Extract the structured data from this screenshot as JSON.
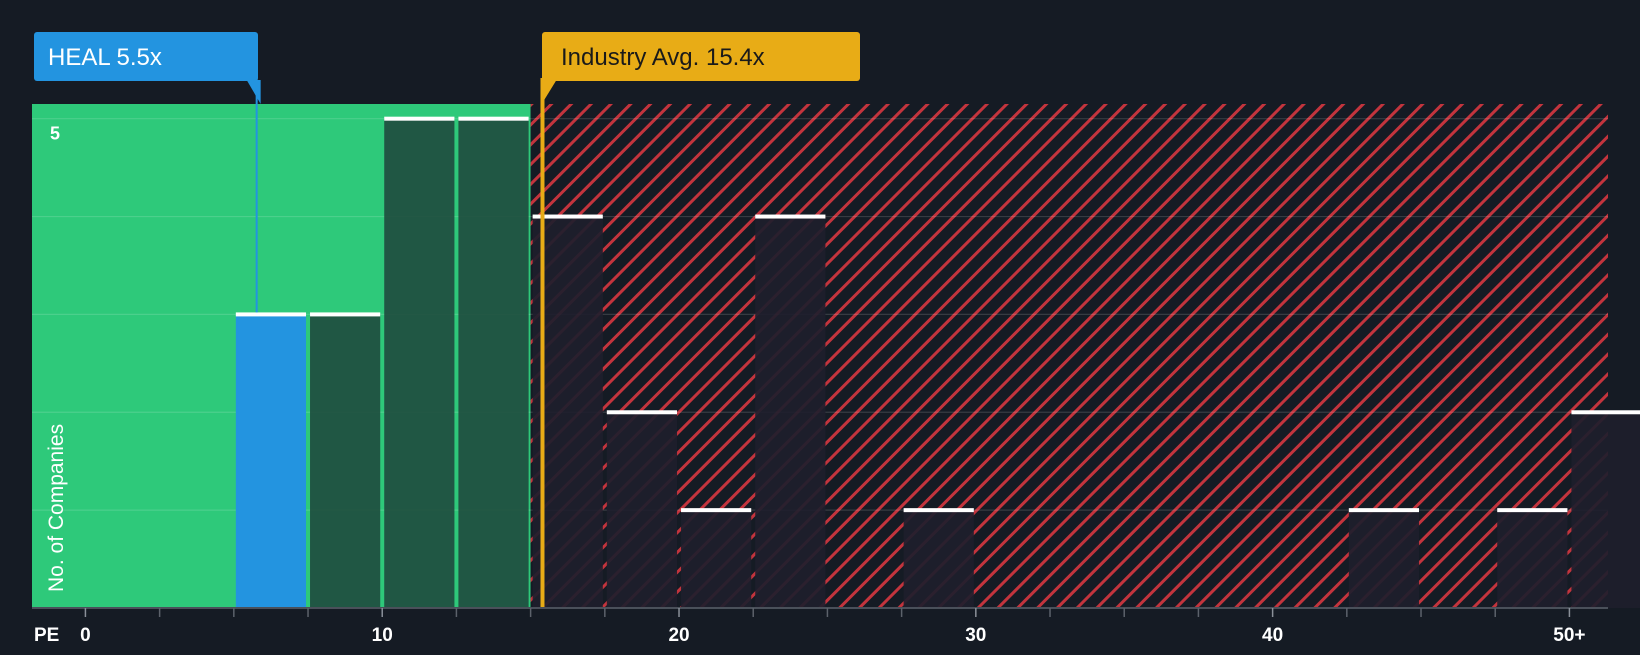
{
  "chart_data": {
    "type": "bar",
    "xlabel": "PE",
    "ylabel": "No. of Companies",
    "x_tick_labels": [
      {
        "value": 0,
        "label": "0"
      },
      {
        "value": 10,
        "label": "10"
      },
      {
        "value": 20,
        "label": "20"
      },
      {
        "value": 30,
        "label": "30"
      },
      {
        "value": 40,
        "label": "40"
      },
      {
        "value": 50,
        "label": "50+"
      }
    ],
    "y_tick_labels": [
      {
        "value": 5,
        "label": "5"
      }
    ],
    "xlim": [
      -1.8,
      51.3
    ],
    "ylim": [
      0,
      5.15
    ],
    "bin_width": 2.5,
    "bins": [
      {
        "start": 5.0,
        "end": 7.5,
        "count": 3
      },
      {
        "start": 7.5,
        "end": 10.0,
        "count": 3
      },
      {
        "start": 10.0,
        "end": 12.5,
        "count": 5
      },
      {
        "start": 12.5,
        "end": 15.0,
        "count": 5
      },
      {
        "start": 15.0,
        "end": 17.5,
        "count": 4
      },
      {
        "start": 17.5,
        "end": 20.0,
        "count": 2
      },
      {
        "start": 20.0,
        "end": 22.5,
        "count": 1
      },
      {
        "start": 22.5,
        "end": 25.0,
        "count": 4
      },
      {
        "start": 27.5,
        "end": 30.0,
        "count": 1
      },
      {
        "start": 42.5,
        "end": 45.0,
        "count": 1
      },
      {
        "start": 47.5,
        "end": 50.0,
        "count": 1
      },
      {
        "start": 50.0,
        "end": 52.5,
        "count": 2
      }
    ],
    "company": {
      "label": "HEAL 5.5x",
      "value": 5.5,
      "color": "#2394e0"
    },
    "industry_avg": {
      "label": "Industry Avg. 15.4x",
      "value": 15.4,
      "color": "#e8ac16"
    },
    "colors": {
      "background": "#151b24",
      "undervalued_zone": "#2ec97a",
      "overvalued_zone": "#c3343d",
      "bar_in_green": "#1f4d3f",
      "bar_in_red": "#1e1e2c",
      "bar_cap": "#ffffff"
    },
    "grid": true
  }
}
